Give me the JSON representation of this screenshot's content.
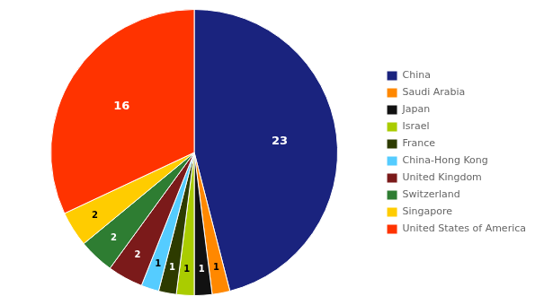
{
  "chart_data": {
    "type": "pie",
    "categories": [
      "China",
      "Saudi Arabia",
      "Japan",
      "Israel",
      "France",
      "China-Hong Kong",
      "United Kingdom",
      "Switzerland",
      "Singapore",
      "United States of America"
    ],
    "values": [
      23,
      1,
      1,
      1,
      1,
      1,
      2,
      2,
      2,
      16
    ],
    "colors": [
      "#1a237e",
      "#ff8800",
      "#111111",
      "#aacc00",
      "#2d3b00",
      "#55ccff",
      "#7b1a1a",
      "#2e7d32",
      "#ffcc00",
      "#ff3300"
    ],
    "data_labels": true,
    "legend": "right"
  }
}
